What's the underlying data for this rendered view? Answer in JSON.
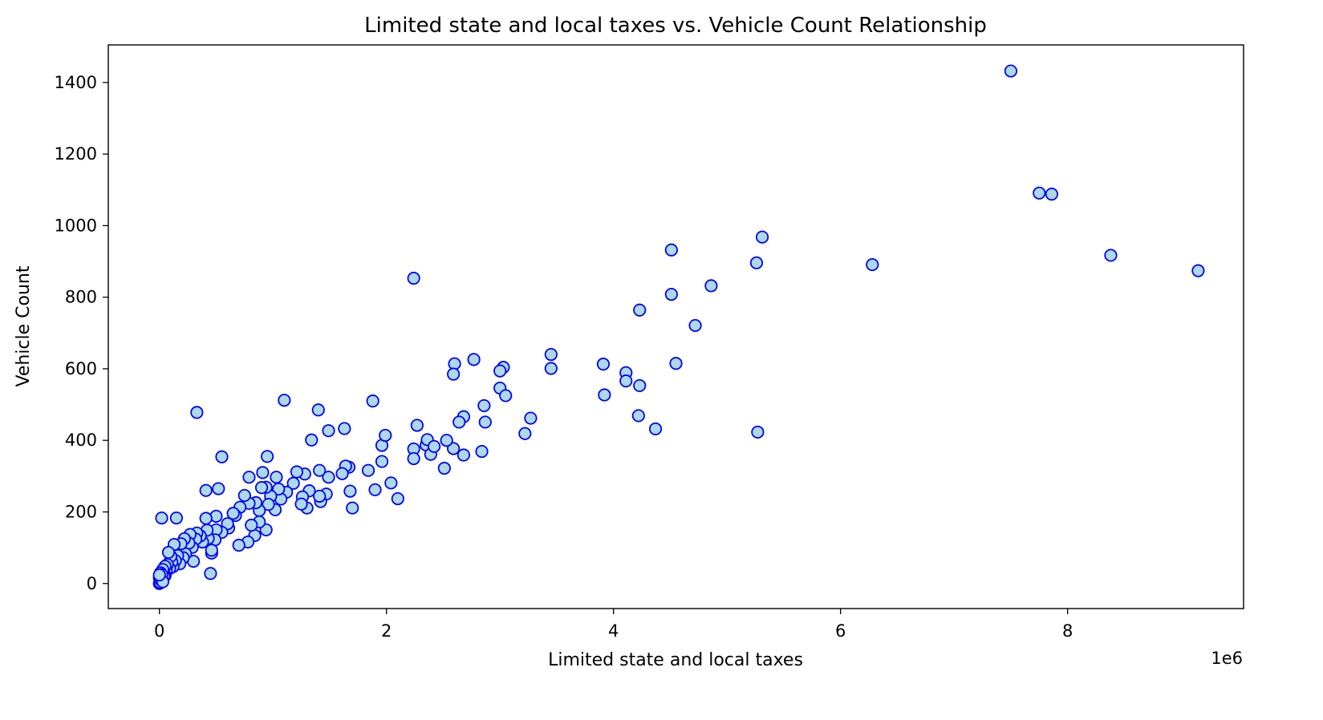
{
  "chart_data": {
    "type": "scatter",
    "title": "Limited state and local taxes vs. Vehicle Count Relationship",
    "xlabel": "Limited state and local taxes",
    "ylabel": "Vehicle Count",
    "x_offset_text": "1e6",
    "xlim": [
      -0.45,
      9.55
    ],
    "ylim": [
      -70,
      1505
    ],
    "x_unit_scale": 1000000,
    "xticks": [
      0,
      2,
      4,
      6,
      8
    ],
    "xtick_labels": [
      "0",
      "2",
      "4",
      "6",
      "8"
    ],
    "yticks": [
      0,
      200,
      400,
      600,
      800,
      1000,
      1200,
      1400
    ],
    "ytick_labels": [
      "0",
      "200",
      "400",
      "600",
      "800",
      "1000",
      "1200",
      "1400"
    ],
    "grid": false,
    "legend": "none",
    "marker": {
      "fill": "#add8e6",
      "edge": "#0000ff"
    },
    "points": [
      [
        7.5,
        1432
      ],
      [
        7.75,
        1091
      ],
      [
        7.86,
        1088
      ],
      [
        8.38,
        917
      ],
      [
        9.15,
        874
      ],
      [
        5.31,
        968
      ],
      [
        5.26,
        896
      ],
      [
        6.28,
        891
      ],
      [
        4.51,
        932
      ],
      [
        4.51,
        808
      ],
      [
        4.86,
        832
      ],
      [
        4.23,
        764
      ],
      [
        4.72,
        721
      ],
      [
        4.55,
        615
      ],
      [
        2.24,
        853
      ],
      [
        5.27,
        423
      ],
      [
        4.37,
        432
      ],
      [
        4.22,
        469
      ],
      [
        4.23,
        553
      ],
      [
        4.11,
        589
      ],
      [
        4.11,
        566
      ],
      [
        3.91,
        613
      ],
      [
        3.92,
        527
      ],
      [
        3.45,
        640
      ],
      [
        3.45,
        601
      ],
      [
        3.03,
        604
      ],
      [
        3.0,
        594
      ],
      [
        3.0,
        546
      ],
      [
        3.05,
        525
      ],
      [
        2.77,
        626
      ],
      [
        2.6,
        614
      ],
      [
        2.59,
        585
      ],
      [
        2.86,
        497
      ],
      [
        2.87,
        451
      ],
      [
        3.27,
        462
      ],
      [
        3.22,
        419
      ],
      [
        2.84,
        369
      ],
      [
        2.68,
        466
      ],
      [
        2.64,
        451
      ],
      [
        2.68,
        359
      ],
      [
        2.59,
        377
      ],
      [
        2.53,
        400
      ],
      [
        2.51,
        322
      ],
      [
        2.35,
        387
      ],
      [
        2.36,
        402
      ],
      [
        2.39,
        361
      ],
      [
        2.42,
        383
      ],
      [
        2.24,
        376
      ],
      [
        2.24,
        349
      ],
      [
        2.27,
        442
      ],
      [
        2.1,
        237
      ],
      [
        2.04,
        281
      ],
      [
        1.96,
        386
      ],
      [
        1.96,
        341
      ],
      [
        1.99,
        414
      ],
      [
        1.88,
        510
      ],
      [
        1.9,
        262
      ],
      [
        1.84,
        316
      ],
      [
        1.7,
        211
      ],
      [
        1.68,
        258
      ],
      [
        1.67,
        325
      ],
      [
        1.64,
        328
      ],
      [
        1.63,
        433
      ],
      [
        1.61,
        307
      ],
      [
        1.49,
        427
      ],
      [
        1.49,
        297
      ],
      [
        1.47,
        250
      ],
      [
        1.4,
        485
      ],
      [
        1.41,
        316
      ],
      [
        1.42,
        229
      ],
      [
        1.41,
        244
      ],
      [
        1.34,
        401
      ],
      [
        1.32,
        259
      ],
      [
        1.3,
        211
      ],
      [
        1.26,
        242
      ],
      [
        1.28,
        306
      ],
      [
        1.25,
        222
      ],
      [
        1.21,
        312
      ],
      [
        1.18,
        280
      ],
      [
        1.12,
        255
      ],
      [
        1.1,
        512
      ],
      [
        1.07,
        236
      ],
      [
        1.05,
        264
      ],
      [
        1.03,
        297
      ],
      [
        1.02,
        206
      ],
      [
        0.98,
        244
      ],
      [
        0.96,
        221
      ],
      [
        0.95,
        355
      ],
      [
        0.94,
        269
      ],
      [
        0.94,
        150
      ],
      [
        0.91,
        310
      ],
      [
        0.9,
        268
      ],
      [
        0.88,
        204
      ],
      [
        0.88,
        172
      ],
      [
        0.85,
        226
      ],
      [
        0.84,
        134
      ],
      [
        0.81,
        163
      ],
      [
        0.79,
        297
      ],
      [
        0.79,
        224
      ],
      [
        0.78,
        116
      ],
      [
        0.75,
        246
      ],
      [
        0.7,
        107
      ],
      [
        0.71,
        213
      ],
      [
        0.67,
        190
      ],
      [
        0.65,
        196
      ],
      [
        0.61,
        155
      ],
      [
        0.6,
        167
      ],
      [
        0.55,
        143
      ],
      [
        0.55,
        354
      ],
      [
        0.52,
        265
      ],
      [
        0.5,
        188
      ],
      [
        0.5,
        150
      ],
      [
        0.49,
        122
      ],
      [
        0.46,
        85
      ],
      [
        0.46,
        93
      ],
      [
        0.45,
        28
      ],
      [
        0.43,
        126
      ],
      [
        0.42,
        149
      ],
      [
        0.41,
        260
      ],
      [
        0.41,
        182
      ],
      [
        0.38,
        116
      ],
      [
        0.36,
        133
      ],
      [
        0.33,
        478
      ],
      [
        0.33,
        141
      ],
      [
        0.32,
        124
      ],
      [
        0.3,
        62
      ],
      [
        0.29,
        101
      ],
      [
        0.27,
        137
      ],
      [
        0.26,
        113
      ],
      [
        0.23,
        83
      ],
      [
        0.22,
        125
      ],
      [
        0.21,
        72
      ],
      [
        0.19,
        111
      ],
      [
        0.18,
        55
      ],
      [
        0.16,
        78
      ],
      [
        0.15,
        183
      ],
      [
        0.14,
        64
      ],
      [
        0.13,
        109
      ],
      [
        0.12,
        47
      ],
      [
        0.11,
        60
      ],
      [
        0.1,
        76
      ],
      [
        0.09,
        42
      ],
      [
        0.08,
        87
      ],
      [
        0.07,
        53
      ],
      [
        0.06,
        36
      ],
      [
        0.05,
        22
      ],
      [
        0.05,
        48
      ],
      [
        0.04,
        20
      ],
      [
        0.03,
        39
      ],
      [
        0.02,
        183
      ],
      [
        0.02,
        12
      ],
      [
        0.01,
        30
      ],
      [
        0.01,
        6
      ],
      [
        0.0,
        0
      ],
      [
        0.0,
        15
      ],
      [
        0.005,
        3
      ],
      [
        0.015,
        9
      ],
      [
        0.02,
        25
      ],
      [
        0.03,
        5
      ],
      [
        0.0,
        24
      ]
    ]
  }
}
